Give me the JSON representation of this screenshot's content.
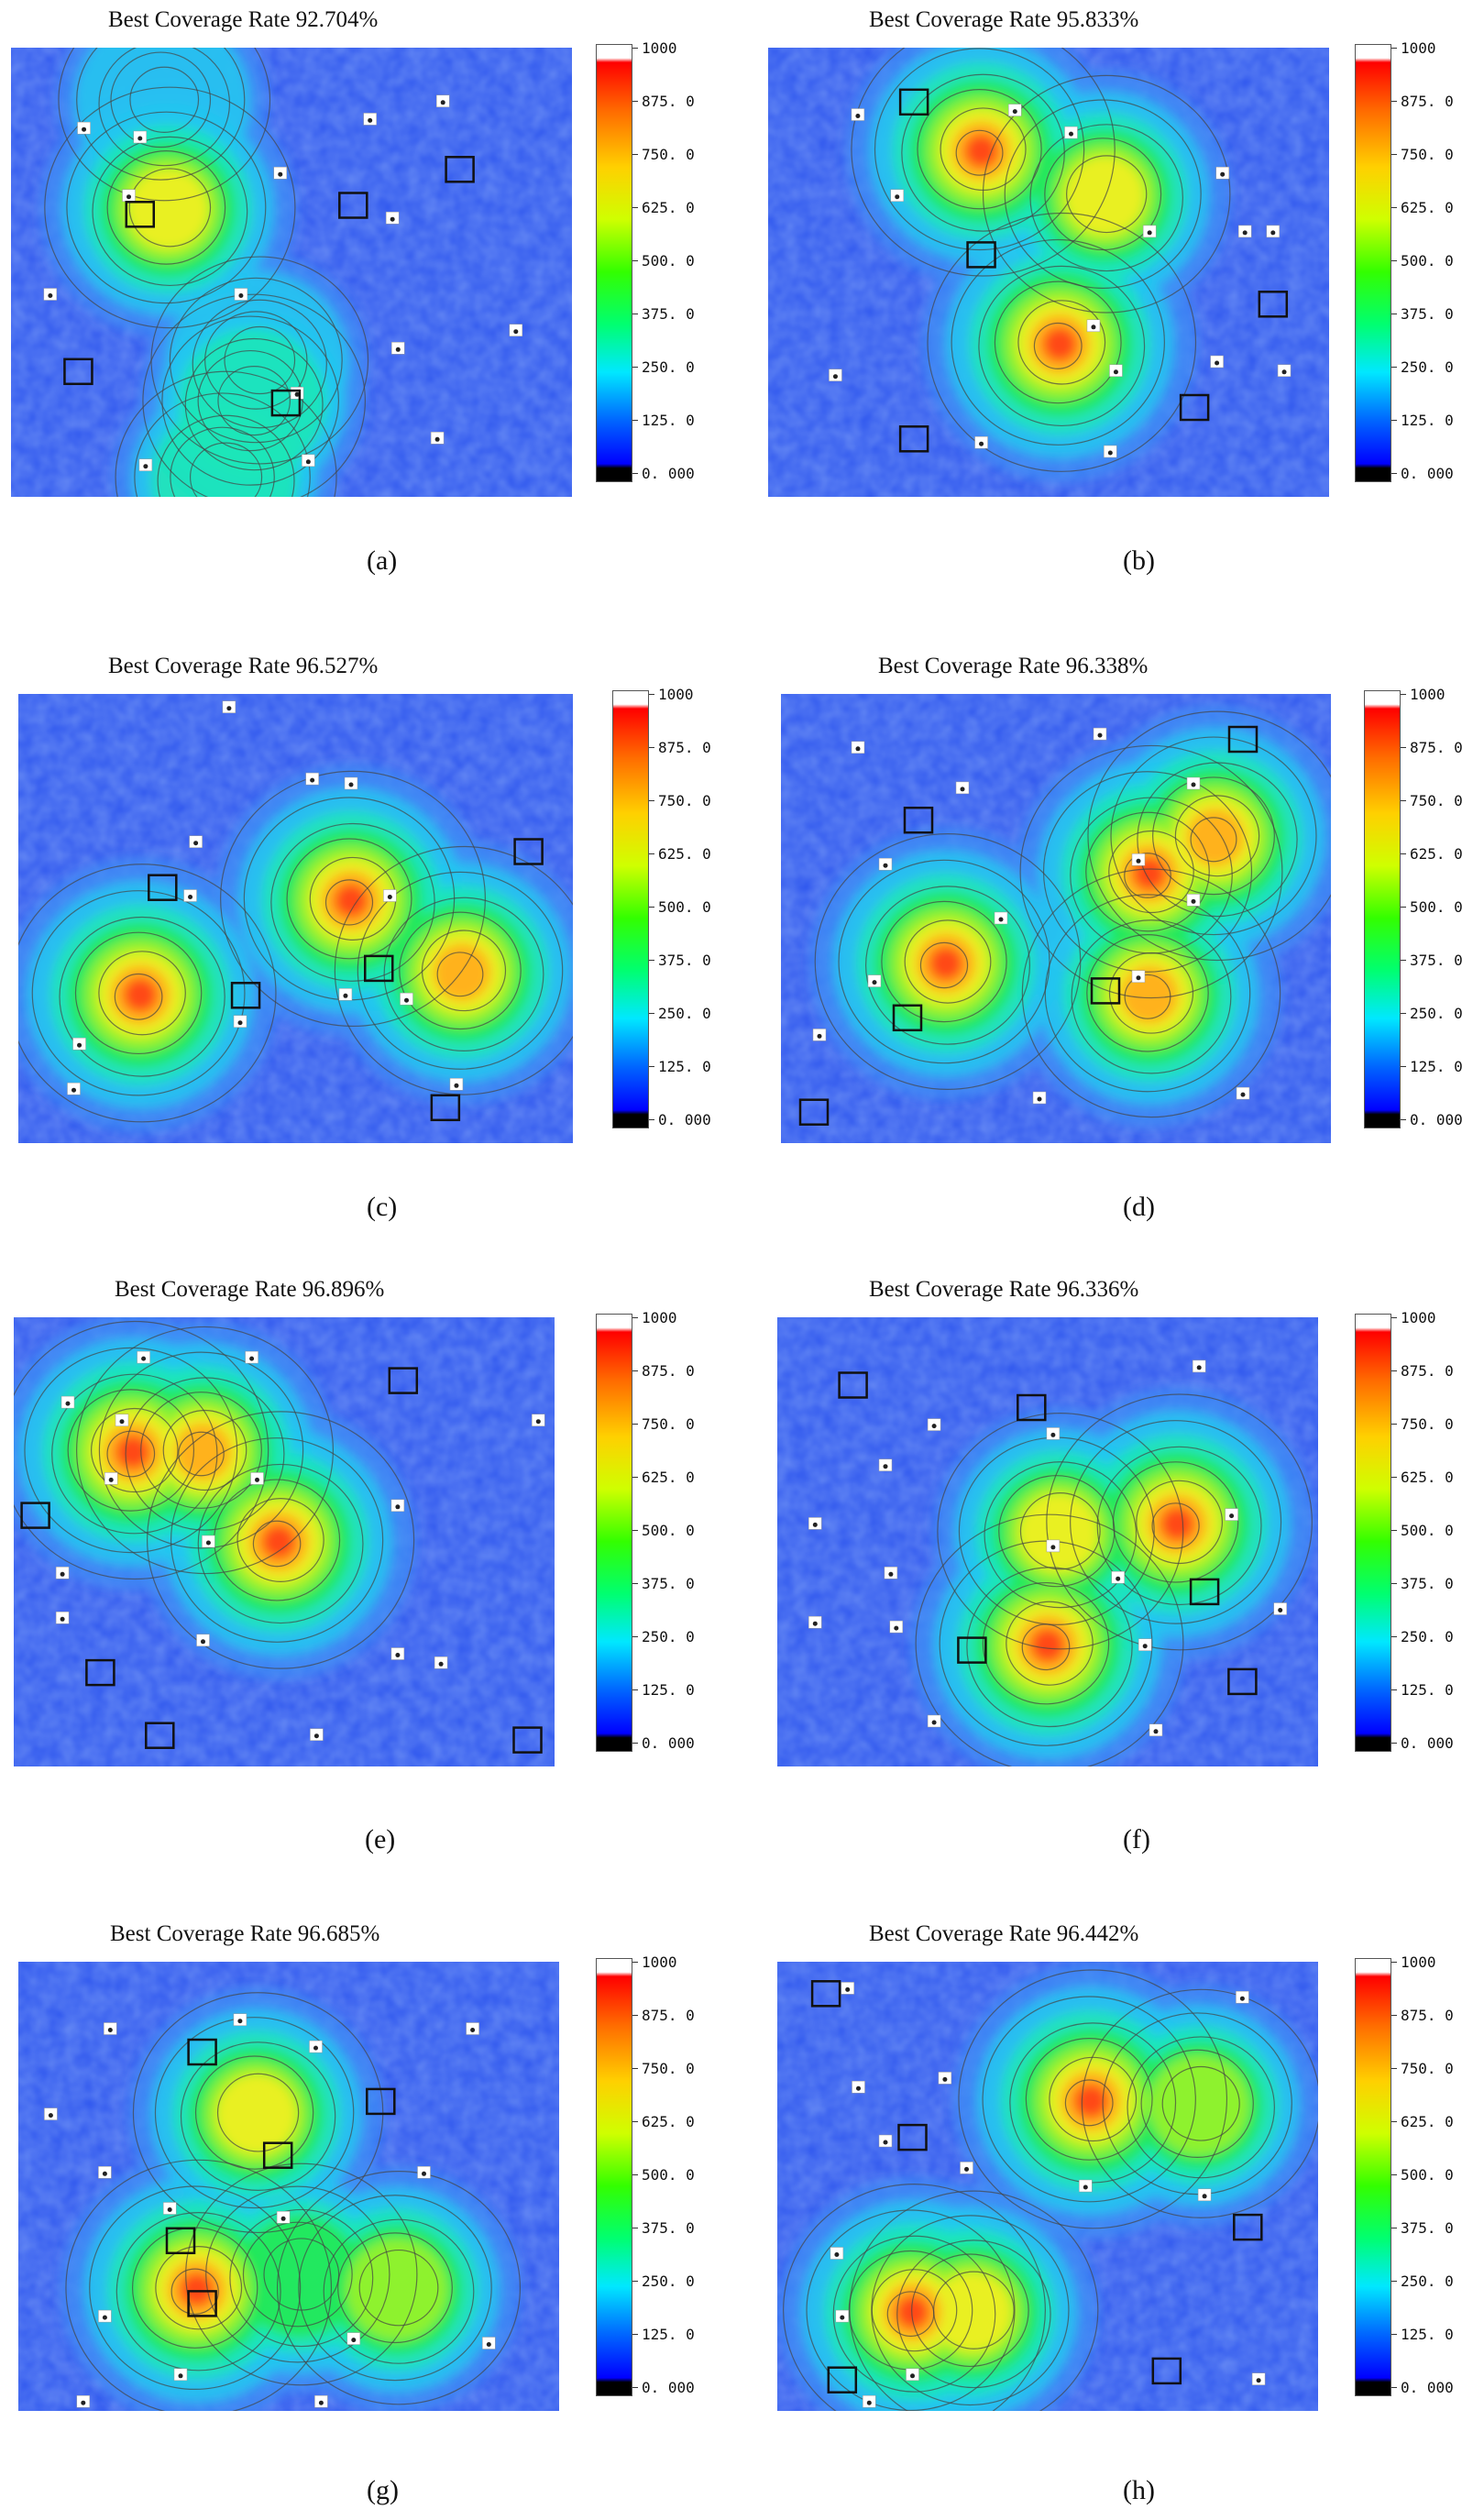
{
  "colorbar": {
    "ticks": [
      "1000",
      "875. 0",
      "750. 0",
      "625. 0",
      "500. 0",
      "375. 0",
      "250. 0",
      "125. 0",
      "0. 000"
    ]
  },
  "colors": {
    "low": "#2a55f0",
    "mid": "#2ff04a",
    "high": "#ff2a10",
    "sensor_box": "#111111"
  },
  "chart_data": [
    {
      "type": "heatmap",
      "label": "(a)",
      "title": "Best Coverage Rate 92.704%",
      "value_range": [
        0,
        1000
      ],
      "hotspots": [
        [
          0.27,
          0.12,
          0.16
        ],
        [
          0.44,
          0.7,
          0.24
        ],
        [
          0.28,
          0.36,
          0.73
        ],
        [
          0.43,
          0.79,
          0.32
        ],
        [
          0.38,
          0.96,
          0.3
        ]
      ],
      "squares": [
        [
          0.23,
          0.37
        ],
        [
          0.12,
          0.72
        ],
        [
          0.8,
          0.27
        ],
        [
          0.61,
          0.35
        ],
        [
          0.49,
          0.79
        ]
      ],
      "markers": [
        [
          0.13,
          0.18
        ],
        [
          0.23,
          0.2
        ],
        [
          0.64,
          0.16
        ],
        [
          0.77,
          0.12
        ],
        [
          0.21,
          0.33
        ],
        [
          0.07,
          0.55
        ],
        [
          0.48,
          0.28
        ],
        [
          0.68,
          0.38
        ],
        [
          0.41,
          0.55
        ],
        [
          0.69,
          0.67
        ],
        [
          0.9,
          0.63
        ],
        [
          0.51,
          0.77
        ],
        [
          0.76,
          0.87
        ],
        [
          0.24,
          0.93
        ],
        [
          0.53,
          0.92
        ]
      ]
    },
    {
      "type": "heatmap",
      "label": "(b)",
      "title": "Best Coverage Rate 95.833%",
      "value_range": [
        0,
        1000
      ],
      "hotspots": [
        [
          0.38,
          0.23,
          0.92
        ],
        [
          0.6,
          0.33,
          0.68
        ],
        [
          0.52,
          0.66,
          0.99
        ]
      ],
      "squares": [
        [
          0.26,
          0.12
        ],
        [
          0.38,
          0.46
        ],
        [
          0.76,
          0.8
        ],
        [
          0.26,
          0.87
        ],
        [
          0.9,
          0.57
        ]
      ],
      "markers": [
        [
          0.16,
          0.15
        ],
        [
          0.44,
          0.14
        ],
        [
          0.54,
          0.19
        ],
        [
          0.23,
          0.33
        ],
        [
          0.68,
          0.41
        ],
        [
          0.81,
          0.28
        ],
        [
          0.85,
          0.41
        ],
        [
          0.9,
          0.41
        ],
        [
          0.58,
          0.62
        ],
        [
          0.62,
          0.72
        ],
        [
          0.8,
          0.7
        ],
        [
          0.92,
          0.72
        ],
        [
          0.12,
          0.73
        ],
        [
          0.38,
          0.88
        ],
        [
          0.61,
          0.9
        ]
      ]
    },
    {
      "type": "heatmap",
      "label": "(c)",
      "title": "Best Coverage Rate 96.527%",
      "value_range": [
        0,
        1000
      ],
      "hotspots": [
        [
          0.22,
          0.67,
          0.98
        ],
        [
          0.6,
          0.46,
          0.94
        ],
        [
          0.8,
          0.62,
          0.84
        ]
      ],
      "squares": [
        [
          0.26,
          0.43
        ],
        [
          0.41,
          0.67
        ],
        [
          0.65,
          0.61
        ],
        [
          0.92,
          0.35
        ],
        [
          0.77,
          0.92
        ]
      ],
      "markers": [
        [
          0.38,
          0.03
        ],
        [
          0.53,
          0.19
        ],
        [
          0.6,
          0.2
        ],
        [
          0.32,
          0.33
        ],
        [
          0.31,
          0.45
        ],
        [
          0.67,
          0.45
        ],
        [
          0.4,
          0.73
        ],
        [
          0.59,
          0.67
        ],
        [
          0.7,
          0.68
        ],
        [
          0.11,
          0.78
        ],
        [
          0.1,
          0.88
        ],
        [
          0.79,
          0.87
        ]
      ]
    },
    {
      "type": "heatmap",
      "label": "(d)",
      "title": "Best Coverage Rate 96.338%",
      "value_range": [
        0,
        1000
      ],
      "hotspots": [
        [
          0.3,
          0.6,
          0.95
        ],
        [
          0.67,
          0.67,
          0.84
        ],
        [
          0.67,
          0.4,
          0.9
        ],
        [
          0.79,
          0.32,
          0.85
        ]
      ],
      "squares": [
        [
          0.84,
          0.1
        ],
        [
          0.25,
          0.28
        ],
        [
          0.23,
          0.72
        ],
        [
          0.59,
          0.66
        ],
        [
          0.06,
          0.93
        ]
      ],
      "markers": [
        [
          0.14,
          0.12
        ],
        [
          0.58,
          0.09
        ],
        [
          0.33,
          0.21
        ],
        [
          0.75,
          0.2
        ],
        [
          0.19,
          0.38
        ],
        [
          0.4,
          0.5
        ],
        [
          0.65,
          0.37
        ],
        [
          0.75,
          0.46
        ],
        [
          0.17,
          0.64
        ],
        [
          0.65,
          0.63
        ],
        [
          0.07,
          0.76
        ],
        [
          0.47,
          0.9
        ],
        [
          0.84,
          0.89
        ]
      ]
    },
    {
      "type": "heatmap",
      "label": "(e)",
      "title": "Best Coverage Rate 96.896%",
      "value_range": [
        0,
        1000
      ],
      "hotspots": [
        [
          0.22,
          0.3,
          0.98
        ],
        [
          0.35,
          0.3,
          0.82
        ],
        [
          0.49,
          0.5,
          0.97
        ]
      ],
      "squares": [
        [
          0.72,
          0.14
        ],
        [
          0.04,
          0.44
        ],
        [
          0.16,
          0.79
        ],
        [
          0.27,
          0.93
        ],
        [
          0.95,
          0.94
        ]
      ],
      "markers": [
        [
          0.24,
          0.09
        ],
        [
          0.44,
          0.09
        ],
        [
          0.1,
          0.19
        ],
        [
          0.18,
          0.36
        ],
        [
          0.45,
          0.36
        ],
        [
          0.36,
          0.5
        ],
        [
          0.71,
          0.42
        ],
        [
          0.97,
          0.23
        ],
        [
          0.09,
          0.57
        ],
        [
          0.09,
          0.67
        ],
        [
          0.35,
          0.72
        ],
        [
          0.71,
          0.75
        ],
        [
          0.79,
          0.77
        ],
        [
          0.56,
          0.93
        ],
        [
          0.2,
          0.23
        ]
      ]
    },
    {
      "type": "heatmap",
      "label": "(f)",
      "title": "Best Coverage Rate 96.336%",
      "value_range": [
        0,
        1000
      ],
      "hotspots": [
        [
          0.52,
          0.48,
          0.66
        ],
        [
          0.74,
          0.46,
          0.95
        ],
        [
          0.5,
          0.73,
          0.98
        ]
      ],
      "squares": [
        [
          0.14,
          0.15
        ],
        [
          0.47,
          0.2
        ],
        [
          0.79,
          0.61
        ],
        [
          0.36,
          0.74
        ],
        [
          0.86,
          0.81
        ]
      ],
      "markers": [
        [
          0.78,
          0.11
        ],
        [
          0.29,
          0.24
        ],
        [
          0.51,
          0.26
        ],
        [
          0.2,
          0.33
        ],
        [
          0.51,
          0.51
        ],
        [
          0.84,
          0.44
        ],
        [
          0.07,
          0.46
        ],
        [
          0.63,
          0.58
        ],
        [
          0.93,
          0.65
        ],
        [
          0.21,
          0.57
        ],
        [
          0.22,
          0.69
        ],
        [
          0.68,
          0.73
        ],
        [
          0.07,
          0.68
        ],
        [
          0.29,
          0.9
        ],
        [
          0.7,
          0.92
        ]
      ]
    },
    {
      "type": "heatmap",
      "label": "(g)",
      "title": "Best Coverage Rate 96.685%",
      "value_range": [
        0,
        1000
      ],
      "hotspots": [
        [
          0.44,
          0.34,
          0.72
        ],
        [
          0.33,
          0.73,
          0.95
        ],
        [
          0.7,
          0.73,
          0.62
        ],
        [
          0.52,
          0.7,
          0.45
        ]
      ],
      "squares": [
        [
          0.34,
          0.2
        ],
        [
          0.67,
          0.31
        ],
        [
          0.48,
          0.43
        ],
        [
          0.3,
          0.62
        ],
        [
          0.34,
          0.76
        ]
      ],
      "markers": [
        [
          0.17,
          0.15
        ],
        [
          0.41,
          0.13
        ],
        [
          0.55,
          0.19
        ],
        [
          0.84,
          0.15
        ],
        [
          0.06,
          0.34
        ],
        [
          0.16,
          0.47
        ],
        [
          0.75,
          0.47
        ],
        [
          0.28,
          0.55
        ],
        [
          0.49,
          0.57
        ],
        [
          0.16,
          0.79
        ],
        [
          0.62,
          0.84
        ],
        [
          0.87,
          0.85
        ],
        [
          0.3,
          0.92
        ],
        [
          0.12,
          0.98
        ],
        [
          0.56,
          0.98
        ]
      ]
    },
    {
      "type": "heatmap",
      "label": "(h)",
      "title": "Best Coverage Rate 96.442%",
      "value_range": [
        0,
        1000
      ],
      "hotspots": [
        [
          0.58,
          0.31,
          0.99
        ],
        [
          0.78,
          0.32,
          0.55
        ],
        [
          0.25,
          0.78,
          0.9
        ],
        [
          0.36,
          0.78,
          0.7
        ]
      ],
      "squares": [
        [
          0.09,
          0.07
        ],
        [
          0.25,
          0.39
        ],
        [
          0.87,
          0.59
        ],
        [
          0.12,
          0.93
        ],
        [
          0.72,
          0.91
        ]
      ],
      "markers": [
        [
          0.13,
          0.06
        ],
        [
          0.86,
          0.08
        ],
        [
          0.31,
          0.26
        ],
        [
          0.15,
          0.28
        ],
        [
          0.2,
          0.4
        ],
        [
          0.35,
          0.46
        ],
        [
          0.57,
          0.5
        ],
        [
          0.79,
          0.52
        ],
        [
          0.11,
          0.65
        ],
        [
          0.12,
          0.79
        ],
        [
          0.25,
          0.92
        ],
        [
          0.89,
          0.93
        ],
        [
          0.17,
          0.98
        ]
      ]
    }
  ],
  "figure_labels": [
    "(a)",
    "(b)",
    "(c)",
    "(d)",
    "(e)",
    "(f)",
    "(g)",
    "(h)"
  ]
}
